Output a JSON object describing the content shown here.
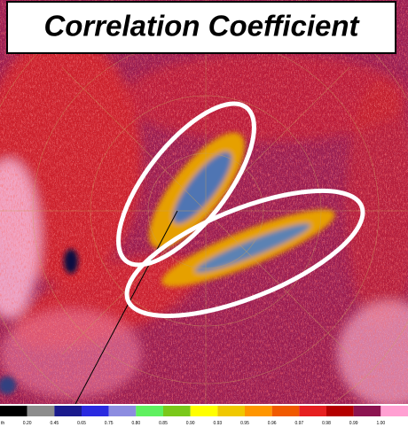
{
  "title": "Correlation Coefficient",
  "colorbar": {
    "labels": [
      "th",
      "0.20",
      "0.45",
      "0.65",
      "0.75",
      "0.80",
      "0.85",
      "0.90",
      "0.93",
      "0.95",
      "0.96",
      "0.97",
      "0.98",
      "0.99",
      "1.00"
    ],
    "colors": [
      "#000000",
      "#8c8c8c",
      "#1a1a8c",
      "#2a2ae0",
      "#8c8ce0",
      "#5ff05f",
      "#7ac81a",
      "#ffff00",
      "#f0c800",
      "#ff9600",
      "#f05a00",
      "#e62020",
      "#b40000",
      "#8c1450",
      "#ffa0d2"
    ]
  }
}
